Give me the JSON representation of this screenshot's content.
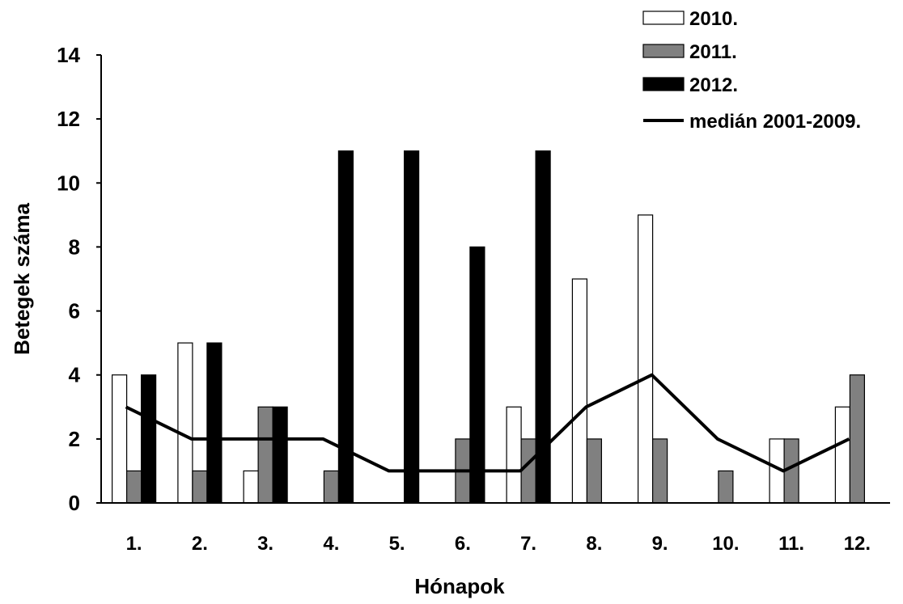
{
  "chart_data": {
    "type": "bar",
    "title": "",
    "xlabel": "Hónapok",
    "ylabel": "Betegek száma",
    "categories": [
      "1.",
      "2.",
      "3.",
      "4.",
      "5.",
      "6.",
      "7.",
      "8.",
      "9.",
      "10.",
      "11.",
      "12."
    ],
    "ylim": [
      0,
      14
    ],
    "yticks": [
      "0",
      "2",
      "4",
      "6",
      "8",
      "10",
      "12",
      "14"
    ],
    "grid": false,
    "legend_position": "top-right",
    "series": [
      {
        "name": "2010.",
        "kind": "bar",
        "color": "#ffffff",
        "values": [
          4,
          5,
          1,
          0,
          0,
          0,
          3,
          7,
          9,
          0,
          2,
          3
        ]
      },
      {
        "name": "2011.",
        "kind": "bar",
        "color": "#808080",
        "values": [
          1,
          1,
          3,
          1,
          0,
          2,
          2,
          2,
          2,
          1,
          2,
          4
        ]
      },
      {
        "name": "2012.",
        "kind": "bar",
        "color": "#000000",
        "values": [
          4,
          5,
          3,
          11,
          11,
          8,
          11,
          0,
          0,
          0,
          0,
          0
        ]
      },
      {
        "name": "medián 2001-2009.",
        "kind": "line",
        "color": "#000000",
        "values": [
          3,
          2,
          2,
          2,
          1,
          1,
          1,
          3,
          4,
          2,
          1,
          2
        ]
      }
    ]
  }
}
